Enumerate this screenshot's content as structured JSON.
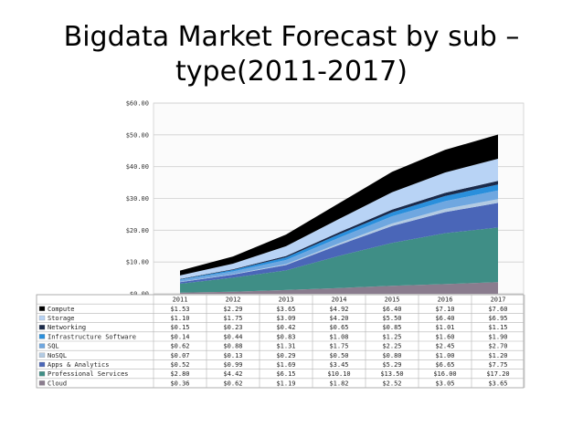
{
  "title": {
    "line1": "Bigdata Market Forecast by sub –",
    "line2": "type(2011-2017)"
  },
  "chart_data": {
    "type": "area",
    "stacked": true,
    "title": "Bigdata Market Forecast by sub – type(2011-2017)",
    "categories": [
      "2011",
      "2012",
      "2013",
      "2014",
      "2015",
      "2016",
      "2017"
    ],
    "ylim": [
      0,
      60
    ],
    "yticks": [
      "$0.00",
      "$10.00",
      "$20.00",
      "$30.00",
      "$40.00",
      "$50.00",
      "$60.00"
    ],
    "grid": true,
    "legend": "table-below",
    "series": [
      {
        "name": "Compute",
        "color": "#000000",
        "values": [
          1.53,
          2.29,
          3.65,
          4.92,
          6.4,
          7.1,
          7.6
        ],
        "labels": [
          "$1.53",
          "$2.29",
          "$3.65",
          "$4.92",
          "$6.40",
          "$7.10",
          "$7.60"
        ]
      },
      {
        "name": "Storage",
        "color": "#b8d3f5",
        "values": [
          1.1,
          1.75,
          3.09,
          4.2,
          5.5,
          6.4,
          6.95
        ],
        "labels": [
          "$1.10",
          "$1.75",
          "$3.09",
          "$4.20",
          "$5.50",
          "$6.40",
          "$6.95"
        ]
      },
      {
        "name": "Networking",
        "color": "#1b2a4a",
        "values": [
          0.15,
          0.23,
          0.42,
          0.65,
          0.85,
          1.01,
          1.15
        ],
        "labels": [
          "$0.15",
          "$0.23",
          "$0.42",
          "$0.65",
          "$0.85",
          "$1.01",
          "$1.15"
        ]
      },
      {
        "name": "Infrastructure Software",
        "color": "#2a8fdc",
        "values": [
          0.14,
          0.44,
          0.83,
          1.08,
          1.25,
          1.6,
          1.9
        ],
        "labels": [
          "$0.14",
          "$0.44",
          "$0.83",
          "$1.08",
          "$1.25",
          "$1.60",
          "$1.90"
        ]
      },
      {
        "name": "SQL",
        "color": "#6fa7e0",
        "values": [
          0.62,
          0.88,
          1.31,
          1.75,
          2.25,
          2.45,
          2.7
        ],
        "labels": [
          "$0.62",
          "$0.88",
          "$1.31",
          "$1.75",
          "$2.25",
          "$2.45",
          "$2.70"
        ]
      },
      {
        "name": "NoSQL",
        "color": "#b3cbe3",
        "values": [
          0.07,
          0.13,
          0.29,
          0.5,
          0.8,
          1.0,
          1.2
        ],
        "labels": [
          "$0.07",
          "$0.13",
          "$0.29",
          "$0.50",
          "$0.80",
          "$1.00",
          "$1.20"
        ]
      },
      {
        "name": "Apps & Analytics",
        "color": "#4a66b8",
        "values": [
          0.52,
          0.99,
          1.69,
          3.45,
          5.29,
          6.65,
          7.75
        ],
        "labels": [
          "$0.52",
          "$0.99",
          "$1.69",
          "$3.45",
          "$5.29",
          "$6.65",
          "$7.75"
        ]
      },
      {
        "name": "Professional Services",
        "color": "#3f8e86",
        "values": [
          2.8,
          4.42,
          6.15,
          10.1,
          13.5,
          16.0,
          17.2
        ],
        "labels": [
          "$2.80",
          "$4.42",
          "$6.15",
          "$10.10",
          "$13.50",
          "$16.00",
          "$17.20"
        ]
      },
      {
        "name": "Cloud",
        "color": "#8a7c8e",
        "values": [
          0.36,
          0.62,
          1.19,
          1.82,
          2.52,
          3.05,
          3.65
        ],
        "labels": [
          "$0.36",
          "$0.62",
          "$1.19",
          "$1.82",
          "$2.52",
          "$3.05",
          "$3.65"
        ]
      }
    ]
  }
}
